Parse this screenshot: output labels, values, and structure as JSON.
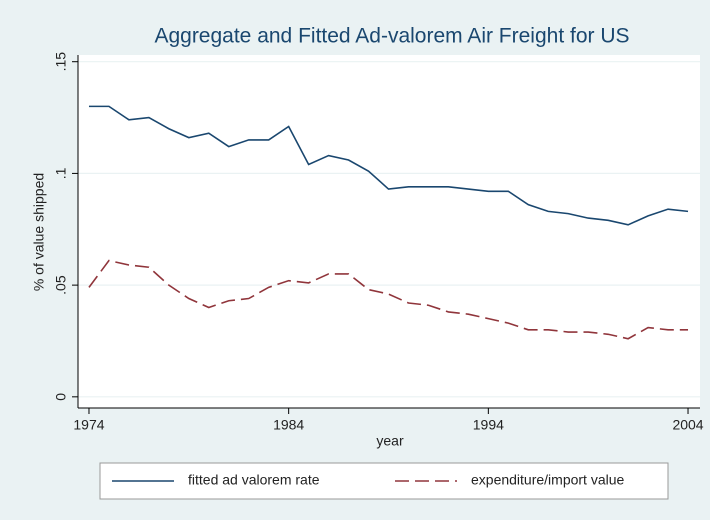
{
  "chart_data": {
    "type": "line",
    "title": "Aggregate and Fitted Ad-valorem Air Freight for US",
    "x_label": "year",
    "y_label": "% of value shipped",
    "x": [
      1974,
      1975,
      1976,
      1977,
      1978,
      1979,
      1980,
      1981,
      1982,
      1983,
      1984,
      1985,
      1986,
      1987,
      1988,
      1989,
      1990,
      1991,
      1992,
      1993,
      1994,
      1995,
      1996,
      1997,
      1998,
      1999,
      2000,
      2001,
      2002,
      2003,
      2004
    ],
    "series": [
      {
        "name": "fitted ad valorem rate",
        "color": "#1a476f",
        "line_style": "solid",
        "values": [
          0.13,
          0.13,
          0.124,
          0.125,
          0.12,
          0.116,
          0.118,
          0.112,
          0.115,
          0.115,
          0.121,
          0.104,
          0.108,
          0.106,
          0.101,
          0.093,
          0.094,
          0.094,
          0.094,
          0.093,
          0.092,
          0.092,
          0.086,
          0.083,
          0.082,
          0.08,
          0.079,
          0.077,
          0.081,
          0.084,
          0.083
        ]
      },
      {
        "name": "expenditure/import value",
        "color": "#90353b",
        "line_style": "dashed",
        "values": [
          0.049,
          0.061,
          0.059,
          0.058,
          0.05,
          0.044,
          0.04,
          0.043,
          0.044,
          0.049,
          0.052,
          0.051,
          0.055,
          0.055,
          0.048,
          0.046,
          0.042,
          0.041,
          0.038,
          0.037,
          0.035,
          0.033,
          0.03,
          0.03,
          0.029,
          0.029,
          0.028,
          0.026,
          0.031,
          0.03,
          0.03
        ]
      }
    ],
    "xlim": [
      1973.45,
      2004.6
    ],
    "ylim": [
      -0.005,
      0.153
    ],
    "xticks": [
      1974,
      1984,
      1994,
      2004
    ],
    "yticks": [
      0,
      {
        "value": 0.05,
        "label": ".05"
      },
      {
        "value": 0.1,
        "label": ".1"
      },
      {
        "value": 0.15,
        "label": ".15"
      }
    ],
    "grid": true,
    "legend_position": "bottom"
  }
}
